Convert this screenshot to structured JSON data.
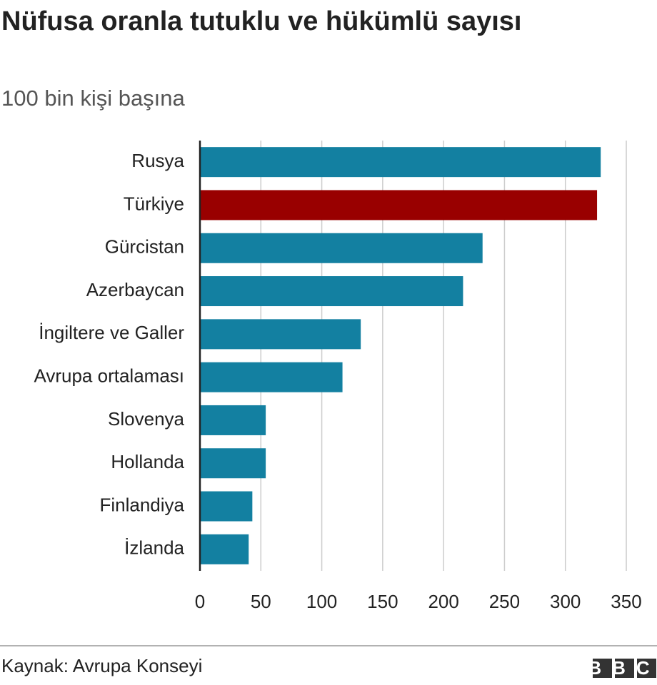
{
  "chart_data": {
    "type": "bar",
    "orientation": "horizontal",
    "title": "Nüfusa oranla tutuklu ve hükümlü sayısı",
    "subtitle": "100 bin kişi başına",
    "categories": [
      "Rusya",
      "Türkiye",
      "Gürcistan",
      "Azerbaycan",
      "İngiltere ve Galler",
      "Avrupa ortalaması",
      "Slovenya",
      "Hollanda",
      "Finlandiya",
      "İzlanda"
    ],
    "values": [
      329,
      326,
      232,
      216,
      132,
      117,
      54,
      54,
      43,
      40
    ],
    "colors": [
      "#1380A1",
      "#990000",
      "#1380A1",
      "#1380A1",
      "#1380A1",
      "#1380A1",
      "#1380A1",
      "#1380A1",
      "#1380A1",
      "#1380A1"
    ],
    "xlim": [
      0,
      350
    ],
    "xticks": [
      0,
      50,
      100,
      150,
      200,
      250,
      300,
      350
    ],
    "grid": true,
    "source": "Kaynak: Avrupa Konseyi",
    "logo": "BBC"
  }
}
